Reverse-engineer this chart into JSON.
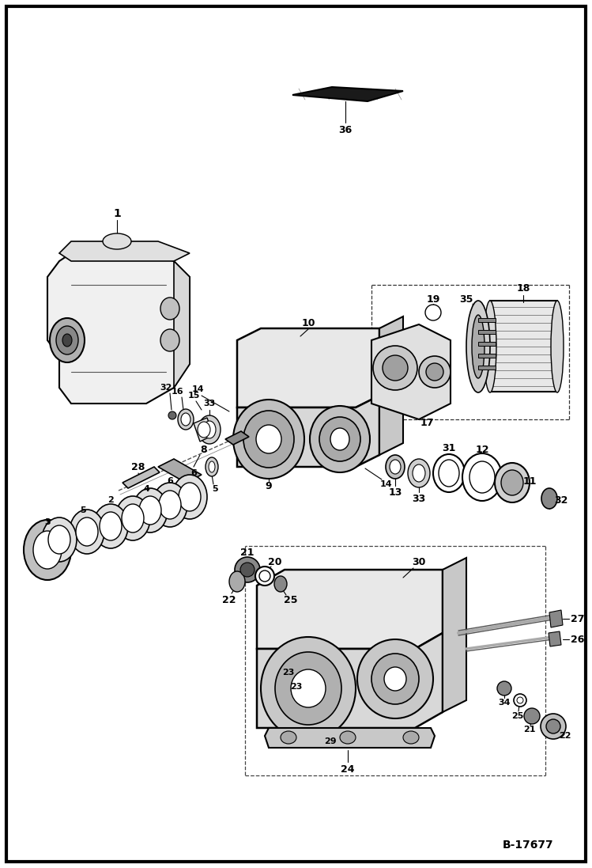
{
  "bg_color": "#ffffff",
  "border_color": "#000000",
  "fig_width": 7.49,
  "fig_height": 10.97,
  "watermark": "B-17677",
  "dpi": 100
}
